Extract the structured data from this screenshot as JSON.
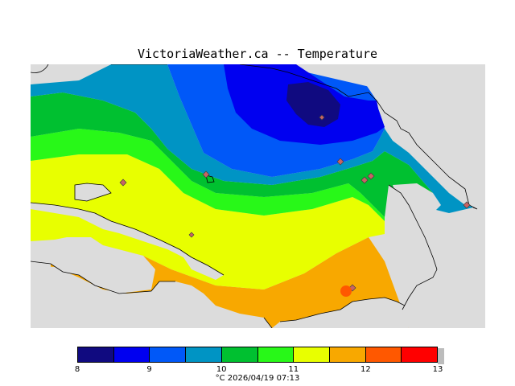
{
  "header": {
    "title": "VictoriaWeather.ca -- Temperature"
  },
  "legend": {
    "ticks": [
      "8",
      "9",
      "10",
      "11",
      "12",
      "13"
    ],
    "colors": [
      "#100a80",
      "#0000f0",
      "#0058f8",
      "#0094c4",
      "#00c030",
      "#28f818",
      "#e8ff00",
      "#f8a800",
      "#ff5800",
      "#ff0000"
    ],
    "caption": "°C  2026/04/19 07:13"
  },
  "map": {
    "land_color": "#dcdcdc",
    "station_color": "#c86464"
  }
}
